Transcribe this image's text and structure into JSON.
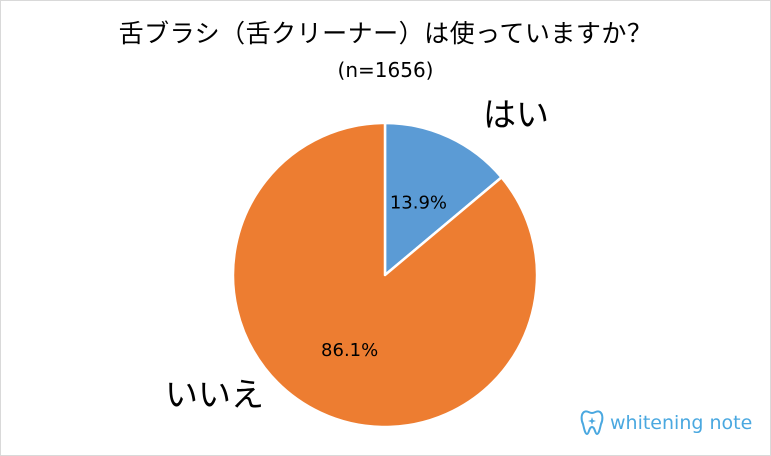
{
  "chart_data": {
    "type": "pie",
    "title": "舌ブラシ（舌クリーナー）は使っていますか？",
    "subtitle": "(n=1656)",
    "slices": [
      {
        "label": "はい",
        "value": 13.9,
        "value_label": "13.9%",
        "color": "#5b9bd5"
      },
      {
        "label": "いいえ",
        "value": 86.1,
        "value_label": "86.1%",
        "color": "#ed7d31"
      }
    ],
    "start_angle": "12 o'clock",
    "direction": "clockwise",
    "legend": "none"
  },
  "brand": {
    "name": "whitening note",
    "icon": "tooth-sparkle-icon",
    "color": "#4aa8e0"
  }
}
